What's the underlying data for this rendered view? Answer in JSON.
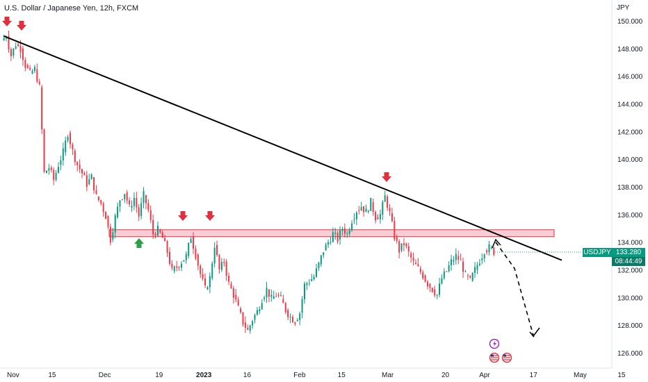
{
  "title": "U.S. Dollar / Japanese Yen, 12h, FXCM",
  "unit": "JPY",
  "symbol_tag": "USDJPY",
  "price_tag": "133.280",
  "countdown_tag": "08:44:49",
  "colors": {
    "up": "#089981",
    "down": "#f23645",
    "zone_fill": "#f7c6cc",
    "zone_stroke": "#e0303f",
    "arrow_down": "#e0303f",
    "arrow_up": "#2e9e4a"
  },
  "chart_data": {
    "type": "candlestick",
    "x_ticks": [
      "Nov",
      "15",
      "Dec",
      "19",
      "2023",
      "16",
      "Feb",
      "15",
      "Mar",
      "20",
      "Apr",
      "17",
      "May",
      "15"
    ],
    "y_ticks": [
      "150.000",
      "148.000",
      "146.000",
      "144.000",
      "142.000",
      "140.000",
      "138.000",
      "136.000",
      "134.000",
      "132.000",
      "130.000",
      "128.000",
      "126.000"
    ],
    "ylim": [
      125.2,
      150.6
    ],
    "last_price": 133.28,
    "close_path": [
      148.6,
      148.9,
      147.5,
      148.3,
      148.0,
      146.8,
      146.2,
      146.5,
      145.2,
      139.0,
      139.4,
      138.5,
      139.6,
      140.5,
      141.9,
      140.6,
      139.6,
      139.0,
      138.2,
      138.7,
      137.3,
      136.8,
      135.9,
      134.2,
      135.8,
      137.1,
      137.6,
      136.5,
      137.2,
      135.9,
      137.4,
      136.3,
      134.6,
      134.9,
      134.3,
      133.3,
      131.9,
      132.2,
      132.6,
      133.0,
      134.4,
      133.1,
      131.7,
      130.6,
      131.4,
      133.8,
      132.0,
      132.6,
      131.0,
      130.2,
      129.2,
      128.2,
      127.6,
      128.4,
      129.0,
      129.9,
      130.6,
      129.9,
      130.2,
      129.9,
      129.1,
      128.6,
      128.3,
      128.9,
      130.9,
      131.2,
      131.5,
      132.4,
      133.4,
      134.0,
      134.6,
      134.2,
      135.0,
      134.6,
      135.6,
      136.3,
      136.6,
      136.2,
      136.9,
      135.8,
      136.0,
      137.3,
      136.1,
      134.4,
      133.4,
      133.9,
      133.2,
      132.5,
      132.1,
      131.6,
      131.0,
      130.6,
      130.2,
      131.4,
      131.9,
      132.6,
      133.0,
      132.6,
      131.6,
      131.2,
      132.0,
      132.7,
      133.4,
      133.6,
      133.3
    ],
    "highs": [
      149.1
    ],
    "lows": [
      127.3
    ],
    "trendline": {
      "from": {
        "date": "Oct 31",
        "price": 148.9
      },
      "to": {
        "date": "Apr 26",
        "price": 132.7
      }
    },
    "resistance_zone": [
      134.4,
      134.9
    ],
    "projection": {
      "from": {
        "date": "Apr 17",
        "price": 134.0
      },
      "via": {
        "date": "Apr 24",
        "price": 130.6
      },
      "to": {
        "date": "Apr 26",
        "price": 127.2
      }
    },
    "markers": [
      {
        "direction": "down",
        "date": "Oct 31"
      },
      {
        "direction": "down",
        "date": "Nov 5"
      },
      {
        "direction": "up",
        "date": "Dec 14"
      },
      {
        "direction": "down",
        "date": "Dec 29"
      },
      {
        "direction": "down",
        "date": "Jan 6"
      },
      {
        "direction": "down",
        "date": "Mar 8"
      }
    ],
    "grid": false
  }
}
